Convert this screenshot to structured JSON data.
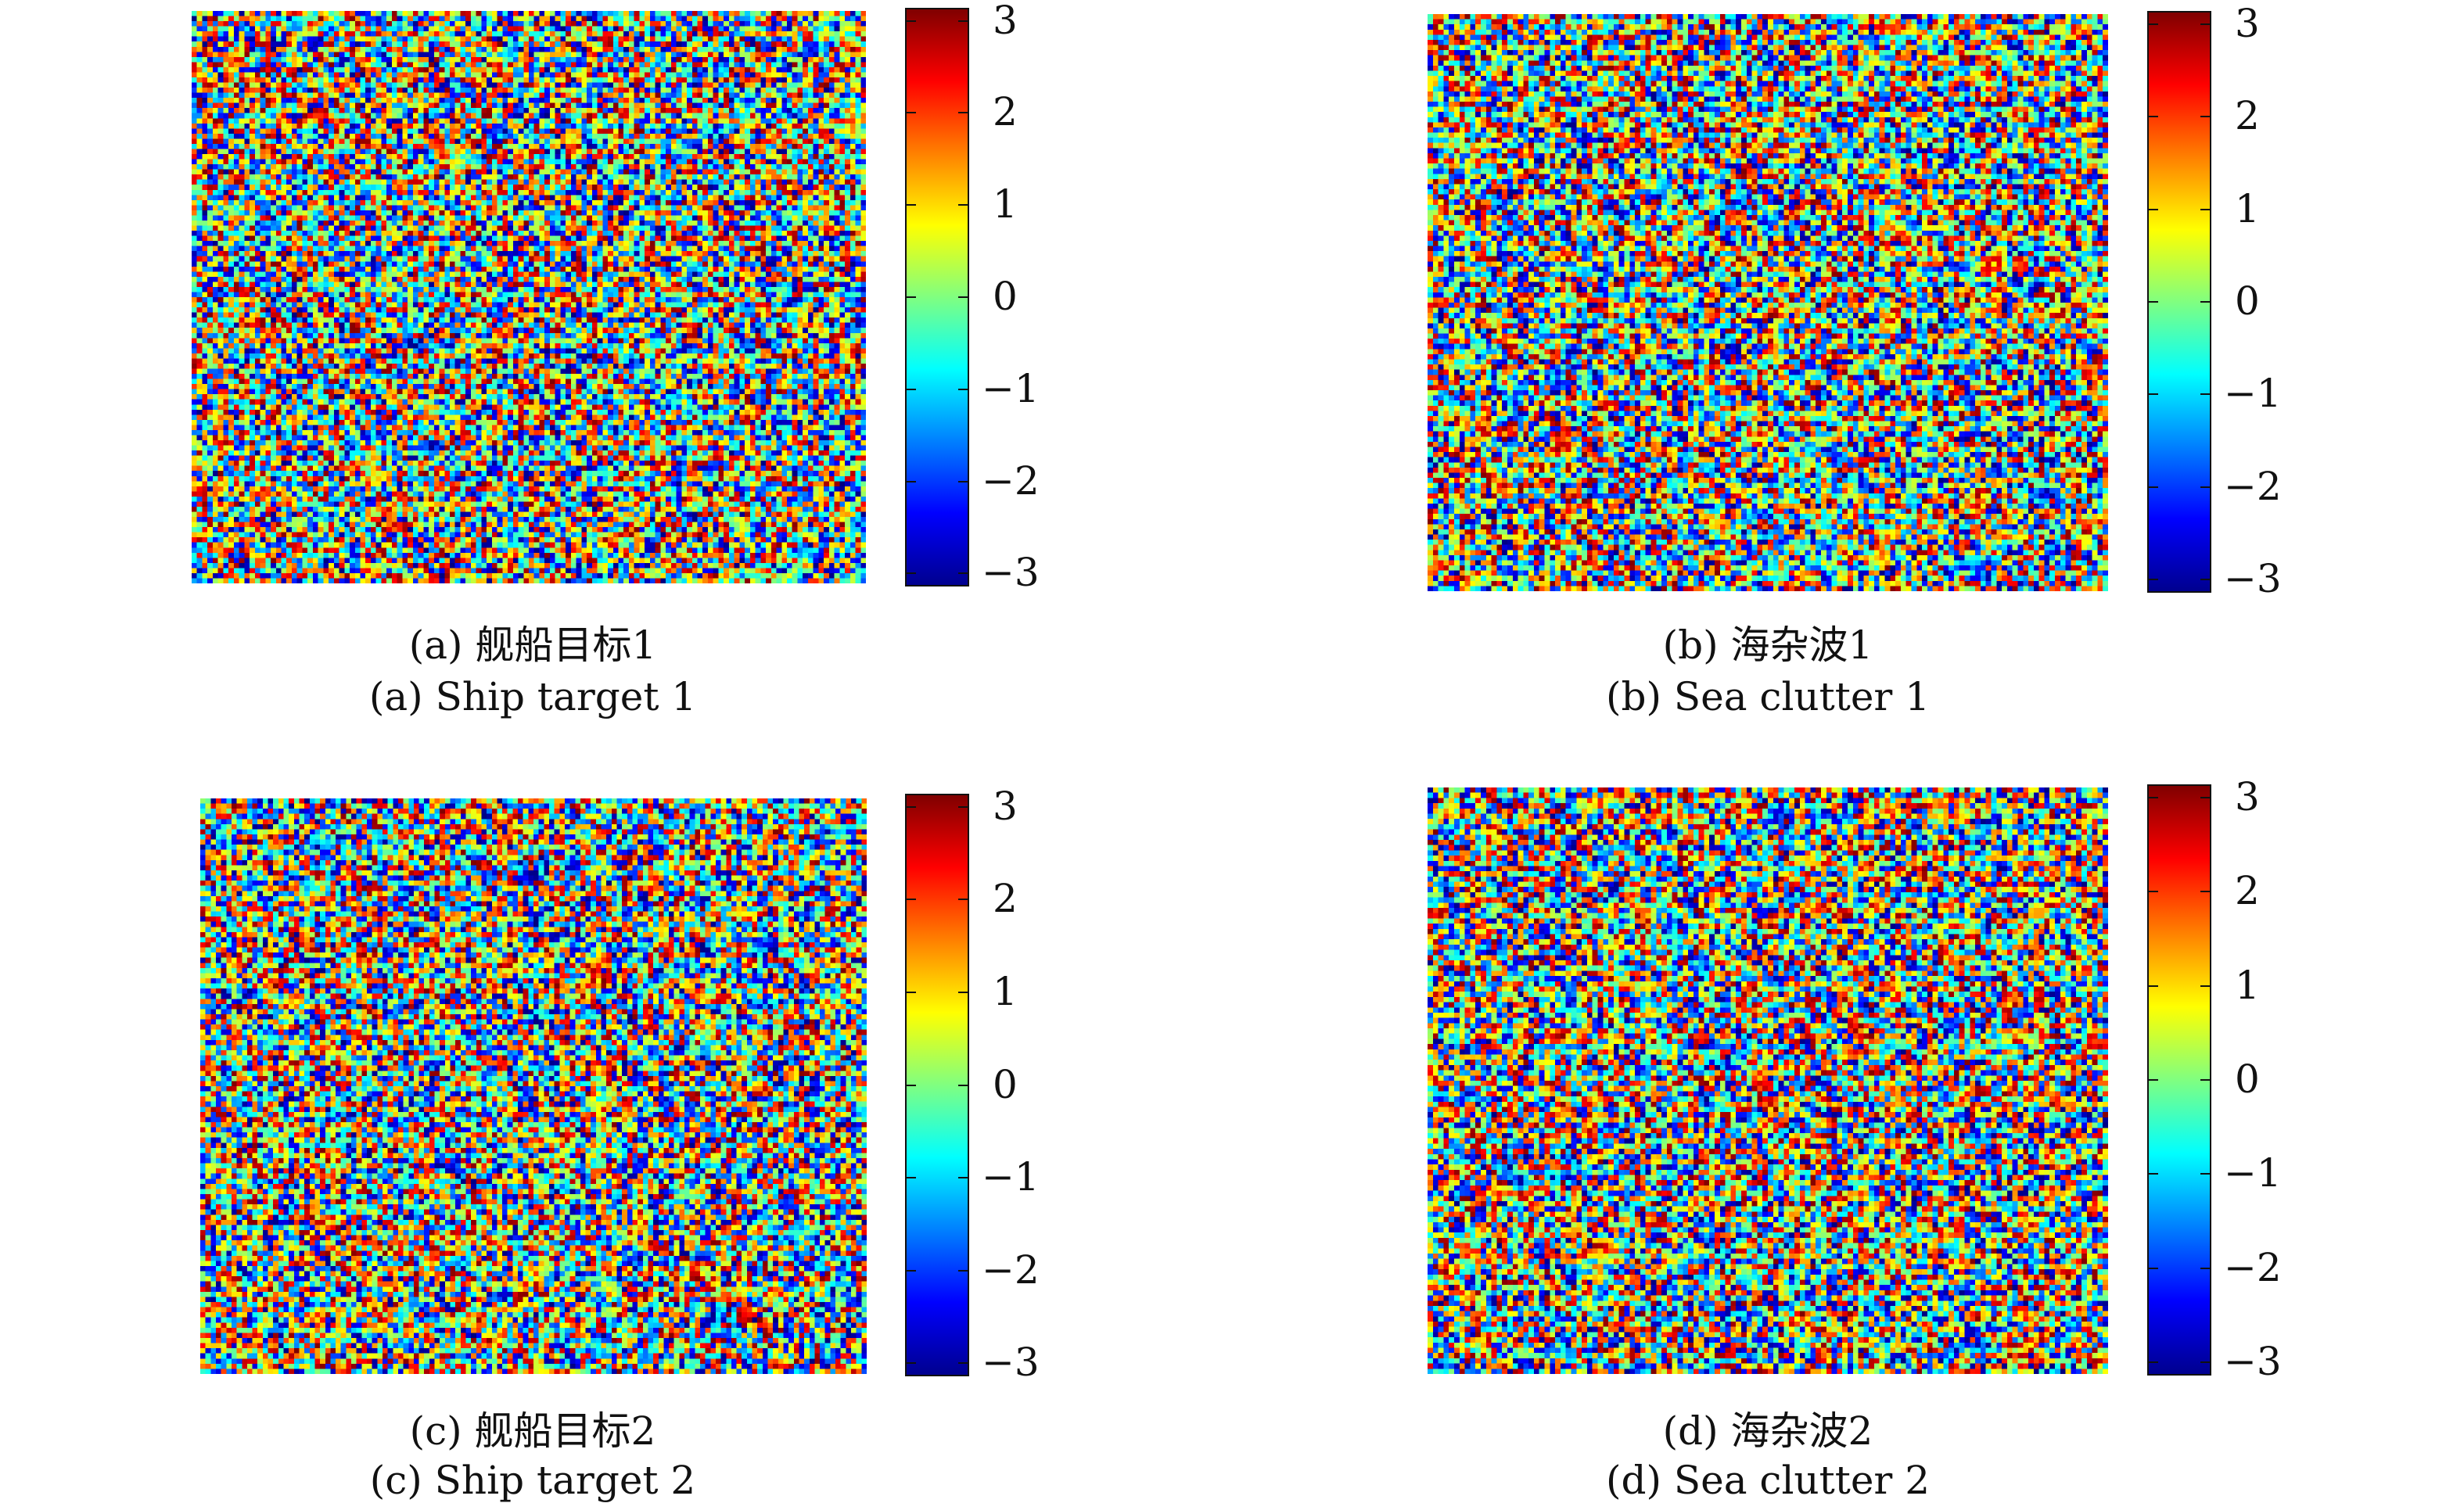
{
  "chart_data": [
    {
      "type": "heatmap",
      "caption_cn": "(a) 舰船目标1",
      "caption_en": "(a) Ship target 1",
      "colormap": "jet",
      "clim": [
        -3.1416,
        3.1416
      ],
      "colorbar_ticks": [
        "3",
        "2",
        "1",
        "0",
        "−1",
        "−2",
        "−3"
      ],
      "colorbar_values": [
        3,
        2,
        1,
        0,
        -1,
        -2,
        -3
      ],
      "grid": false
    },
    {
      "type": "heatmap",
      "caption_cn": "(b) 海杂波1",
      "caption_en": "(b) Sea clutter 1",
      "colormap": "jet",
      "clim": [
        -3.1416,
        3.1416
      ],
      "colorbar_ticks": [
        "3",
        "2",
        "1",
        "0",
        "−1",
        "−2",
        "−3"
      ],
      "colorbar_values": [
        3,
        2,
        1,
        0,
        -1,
        -2,
        -3
      ],
      "grid": false
    },
    {
      "type": "heatmap",
      "caption_cn": "(c) 舰船目标2",
      "caption_en": "(c) Ship target 2",
      "colormap": "jet",
      "clim": [
        -3.1416,
        3.1416
      ],
      "colorbar_ticks": [
        "3",
        "2",
        "1",
        "0",
        "−1",
        "−2",
        "−3"
      ],
      "colorbar_values": [
        3,
        2,
        1,
        0,
        -1,
        -2,
        -3
      ],
      "grid": false
    },
    {
      "type": "heatmap",
      "caption_cn": "(d) 海杂波2",
      "caption_en": "(d) Sea clutter 2",
      "colormap": "jet",
      "clim": [
        -3.1416,
        3.1416
      ],
      "colorbar_ticks": [
        "3",
        "2",
        "1",
        "0",
        "−1",
        "−2",
        "−3"
      ],
      "colorbar_values": [
        3,
        2,
        1,
        0,
        -1,
        -2,
        -3
      ],
      "grid": false
    }
  ]
}
